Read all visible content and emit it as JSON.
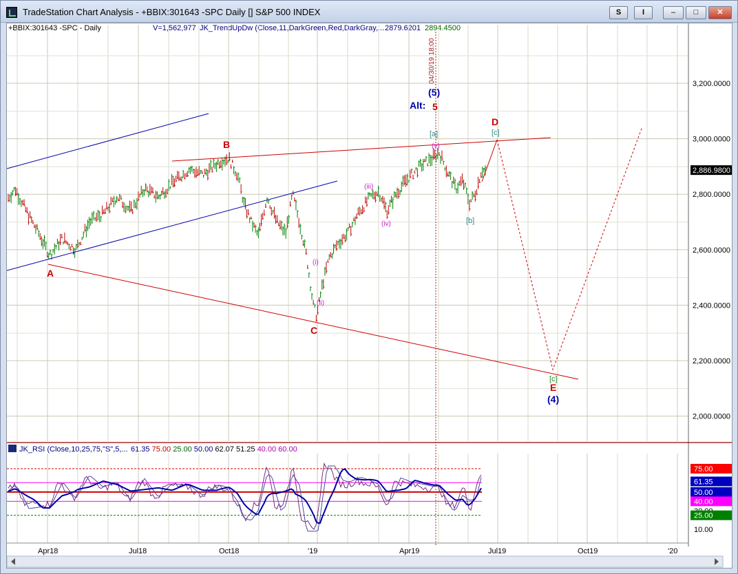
{
  "window": {
    "title": "TradeStation Chart Analysis - +BBIX:301643 -SPC Daily [] S&P 500 INDEX",
    "buttons": {
      "s": "S",
      "i": "I",
      "min": "–",
      "max": "□",
      "close": "✕"
    }
  },
  "header": {
    "symbol": "+BBIX:301643 -SPC - Daily",
    "volume": "V=1,562,977",
    "indicator": "JK_TrendUpDw (Close,11,DarkGreen,Red,DarkGray,...",
    "value1": "2879.6201",
    "value2": "2894.4500",
    "value1_color": "#000080",
    "value2_color": "#006400"
  },
  "price_axis": {
    "ticks": [
      "3,200.0000",
      "3,000.0000",
      "2,800.0000",
      "2,600.0000",
      "2,400.0000",
      "2,200.0000",
      "2,000.0000"
    ],
    "tick_values": [
      3200,
      3000,
      2800,
      2600,
      2400,
      2200,
      2000
    ],
    "last_price": "2,886.9800",
    "last_value": 2886.98
  },
  "time_axis": {
    "labels": [
      "Apr18",
      "Jul18",
      "Oct18",
      "'19",
      "Apr19",
      "Jul19",
      "Oct19",
      "'20"
    ]
  },
  "vline_label": "04/30/19 18:00",
  "wave_labels": {
    "A": "A",
    "B": "B",
    "C": "C",
    "D": "D",
    "E": "E",
    "wave5": "(5)",
    "alt": "Alt:",
    "alt5": "5",
    "a": "[a]",
    "b": "[b]",
    "c_top": "[c]",
    "c_bottom": "[c]",
    "i": "(i)",
    "ii": "(ii)",
    "iii": "(iii)",
    "iv": "(iv)",
    "v": "(v)",
    "wave4": "(4)"
  },
  "rsi": {
    "header_name": "JK_RSI (Close,10,25,75,\"S\",5,...",
    "values": [
      "61.35",
      "75.00",
      "25.00",
      "50.00",
      "62.07",
      "51.25",
      "40.00",
      "60.00"
    ],
    "value_colors": [
      "#000080",
      "#c00000",
      "#006400",
      "#000080",
      "#000000",
      "#000000",
      "#b000b0",
      "#b000b0"
    ],
    "axis": [
      {
        "label": "75.00",
        "value": 75,
        "bg": "#ff0000",
        "fg": "#ffffff"
      },
      {
        "label": "61.35",
        "value": 61.35,
        "bg": "#0000c0",
        "fg": "#ffffff"
      },
      {
        "label": "50.00",
        "value": 50,
        "bg": "#0000c0",
        "fg": "#ffffff"
      },
      {
        "label": "40.00",
        "value": 40,
        "bg": "#ff00ff",
        "fg": "#ffffff"
      },
      {
        "label": "30.00",
        "value": 30,
        "bg": "",
        "fg": "#000000"
      },
      {
        "label": "25.00",
        "value": 25,
        "bg": "#008000",
        "fg": "#ffffff"
      },
      {
        "label": "10.00",
        "value": 10,
        "bg": "",
        "fg": "#000000"
      }
    ]
  },
  "colors": {
    "grid": "#c8c8b4",
    "red": "#cc0000",
    "blue": "#0000aa",
    "teal": "#2a8a8a",
    "magenta": "#cc22cc",
    "up_bar": "#008000",
    "down_bar": "#c00000"
  }
}
